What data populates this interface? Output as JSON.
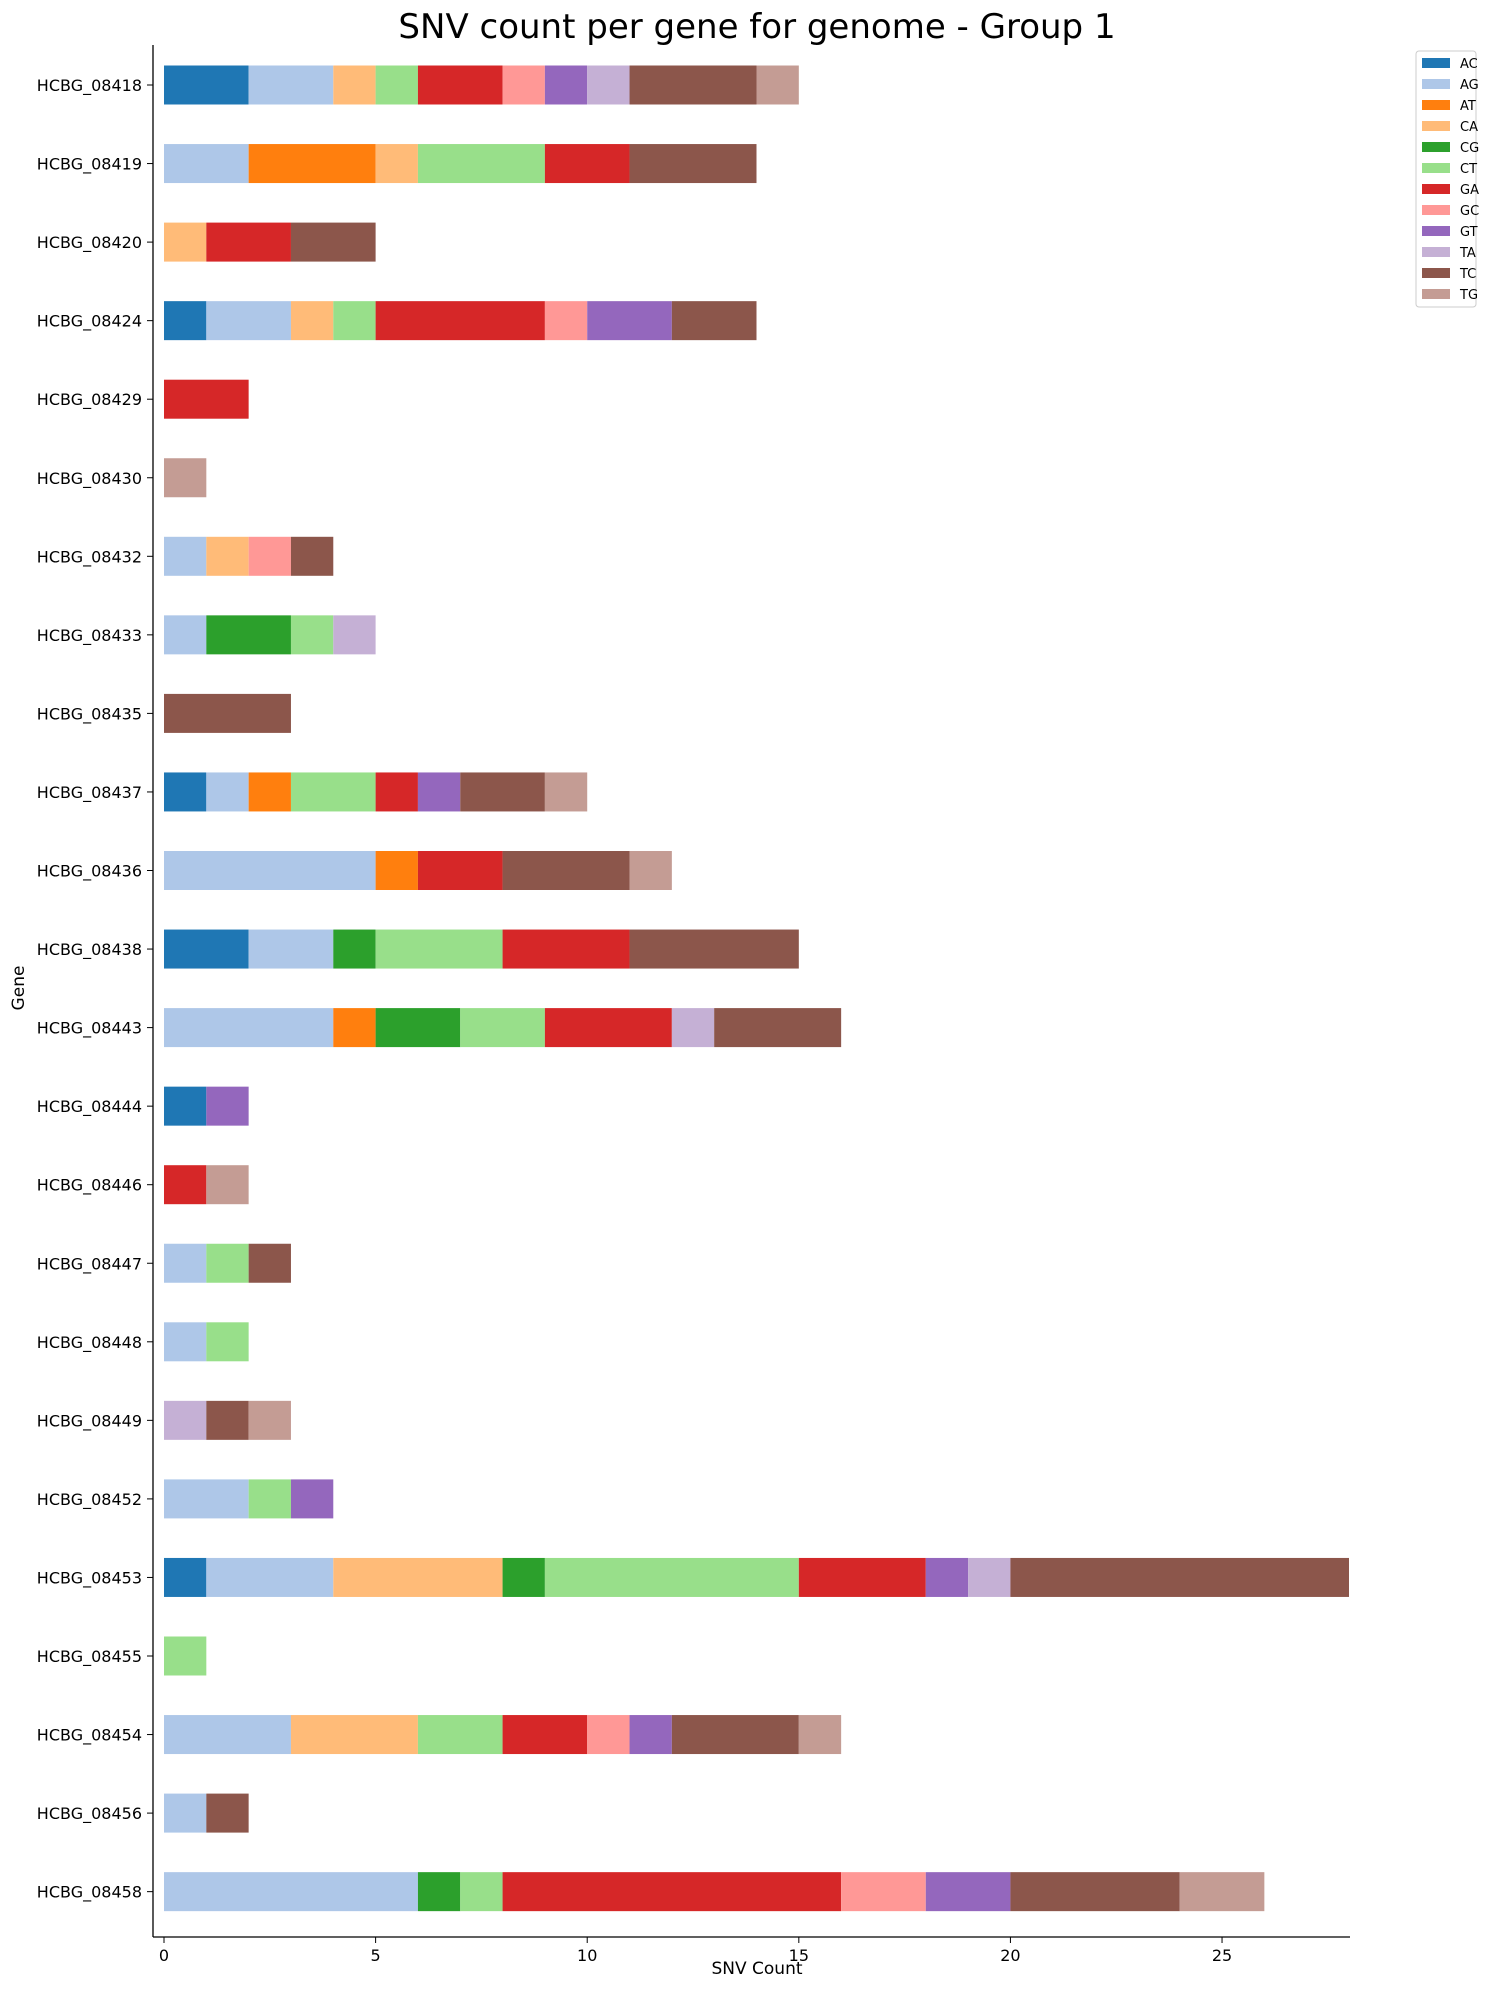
{
  "chart_data": {
    "type": "bar",
    "orientation": "horizontal",
    "stacked": true,
    "title": "SNV count per gene for genome - Group 1",
    "xlabel": "SNV Count",
    "ylabel": "Gene",
    "xlim": [
      0,
      28
    ],
    "xticks": [
      0,
      5,
      10,
      15,
      20,
      25
    ],
    "grid": false,
    "legend_position": "top-right",
    "categories": [
      "HCBG_08418",
      "HCBG_08419",
      "HCBG_08420",
      "HCBG_08424",
      "HCBG_08429",
      "HCBG_08430",
      "HCBG_08432",
      "HCBG_08433",
      "HCBG_08435",
      "HCBG_08437",
      "HCBG_08436",
      "HCBG_08438",
      "HCBG_08443",
      "HCBG_08444",
      "HCBG_08446",
      "HCBG_08447",
      "HCBG_08448",
      "HCBG_08449",
      "HCBG_08452",
      "HCBG_08453",
      "HCBG_08455",
      "HCBG_08454",
      "HCBG_08456",
      "HCBG_08458"
    ],
    "series": [
      {
        "name": "AC",
        "color": "#1f77b4",
        "values": [
          2,
          0,
          0,
          1,
          0,
          0,
          0,
          0,
          0,
          1,
          0,
          2,
          0,
          1,
          0,
          0,
          0,
          0,
          0,
          1,
          0,
          0,
          0,
          0
        ]
      },
      {
        "name": "AG",
        "color": "#aec7e8",
        "values": [
          2,
          2,
          0,
          2,
          0,
          0,
          1,
          1,
          0,
          1,
          5,
          2,
          4,
          0,
          0,
          1,
          1,
          0,
          2,
          3,
          0,
          3,
          1,
          6
        ]
      },
      {
        "name": "AT",
        "color": "#ff7f0e",
        "values": [
          0,
          3,
          0,
          0,
          0,
          0,
          0,
          0,
          0,
          1,
          1,
          0,
          1,
          0,
          0,
          0,
          0,
          0,
          0,
          0,
          0,
          0,
          0,
          0
        ]
      },
      {
        "name": "CA",
        "color": "#ffbb78",
        "values": [
          1,
          1,
          1,
          1,
          0,
          0,
          1,
          0,
          0,
          0,
          0,
          0,
          0,
          0,
          0,
          0,
          0,
          0,
          0,
          4,
          0,
          3,
          0,
          0
        ]
      },
      {
        "name": "CG",
        "color": "#2ca02c",
        "values": [
          0,
          0,
          0,
          0,
          0,
          0,
          0,
          2,
          0,
          0,
          0,
          1,
          2,
          0,
          0,
          0,
          0,
          0,
          0,
          1,
          0,
          0,
          0,
          1
        ]
      },
      {
        "name": "CT",
        "color": "#98df8a",
        "values": [
          1,
          3,
          0,
          1,
          0,
          0,
          0,
          1,
          0,
          2,
          0,
          3,
          2,
          0,
          0,
          1,
          1,
          0,
          1,
          6,
          1,
          2,
          0,
          1
        ]
      },
      {
        "name": "GA",
        "color": "#d62728",
        "values": [
          2,
          2,
          2,
          4,
          2,
          0,
          0,
          0,
          0,
          1,
          2,
          3,
          3,
          0,
          1,
          0,
          0,
          0,
          0,
          3,
          0,
          2,
          0,
          8
        ]
      },
      {
        "name": "GC",
        "color": "#ff9896",
        "values": [
          1,
          0,
          0,
          1,
          0,
          0,
          1,
          0,
          0,
          0,
          0,
          0,
          0,
          0,
          0,
          0,
          0,
          0,
          0,
          0,
          0,
          1,
          0,
          2
        ]
      },
      {
        "name": "GT",
        "color": "#9467bd",
        "values": [
          1,
          0,
          0,
          2,
          0,
          0,
          0,
          0,
          0,
          1,
          0,
          0,
          0,
          1,
          0,
          0,
          0,
          0,
          1,
          1,
          0,
          1,
          0,
          2
        ]
      },
      {
        "name": "TA",
        "color": "#c5b0d5",
        "values": [
          1,
          0,
          0,
          0,
          0,
          0,
          0,
          1,
          0,
          0,
          0,
          0,
          1,
          0,
          0,
          0,
          0,
          1,
          0,
          1,
          0,
          0,
          0,
          0
        ]
      },
      {
        "name": "TC",
        "color": "#8c564b",
        "values": [
          3,
          3,
          2,
          2,
          0,
          0,
          1,
          0,
          3,
          2,
          3,
          4,
          3,
          0,
          0,
          1,
          0,
          1,
          0,
          8,
          0,
          3,
          1,
          4
        ]
      },
      {
        "name": "TG",
        "color": "#c49c94",
        "values": [
          1,
          0,
          0,
          0,
          0,
          1,
          0,
          0,
          0,
          1,
          1,
          0,
          0,
          0,
          1,
          0,
          0,
          1,
          0,
          0,
          0,
          1,
          0,
          2
        ]
      }
    ]
  }
}
